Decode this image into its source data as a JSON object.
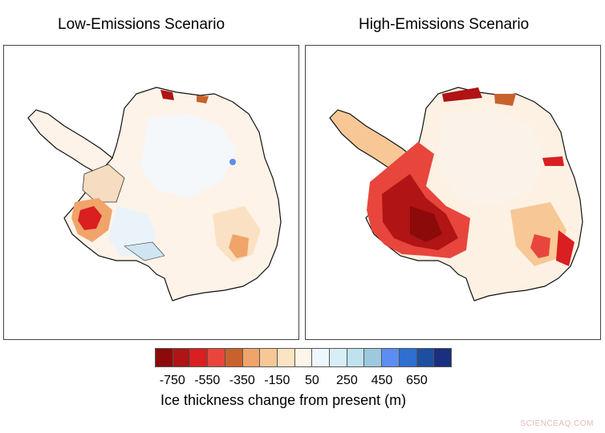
{
  "panels": [
    {
      "title": "Low-Emissions Scenario"
    },
    {
      "title": "High-Emissions Scenario"
    }
  ],
  "legend": {
    "colors": [
      "#8c0a0a",
      "#b01414",
      "#d91f1f",
      "#e8463c",
      "#c8622c",
      "#f0a46a",
      "#f7c896",
      "#fbe4c2",
      "#fdf5ea",
      "#eef7fb",
      "#d8eef6",
      "#bfe2ef",
      "#9cc9df",
      "#5b8ef0",
      "#2e6fd0",
      "#1c4fa0",
      "#1a2f80"
    ],
    "tick_labels": [
      "-750",
      "-550",
      "-350",
      "-150",
      "50",
      "250",
      "450",
      "650"
    ],
    "label": "Ice thickness change from present (m)"
  },
  "watermark": "SCIENCEAQ.COM"
}
